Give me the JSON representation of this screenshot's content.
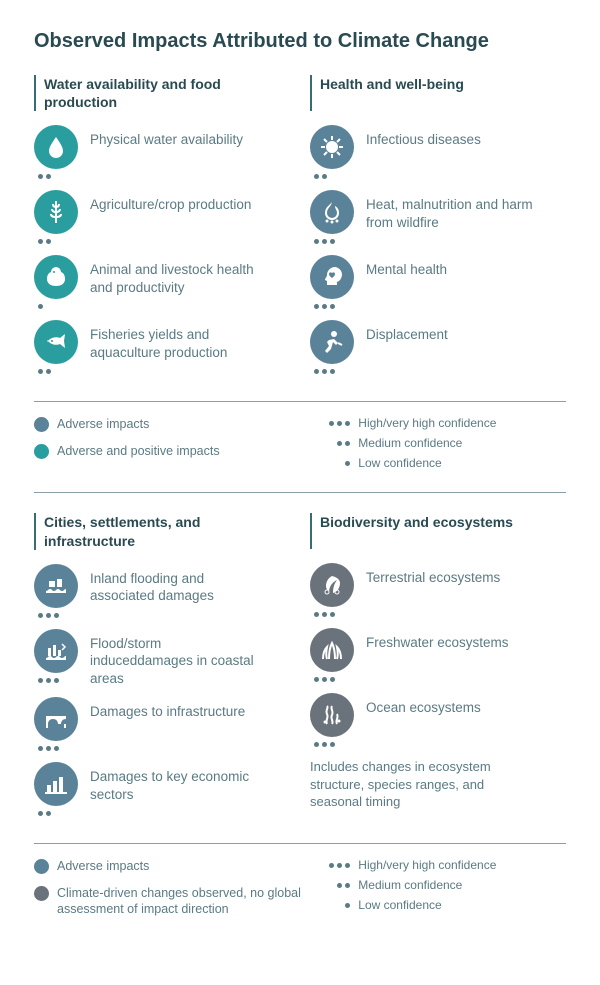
{
  "colors": {
    "teal": "#2a9d9e",
    "blue": "#5a8298",
    "gray": "#6a737b",
    "text": "#5a7a84",
    "heading": "#2a4a52"
  },
  "title": "Observed Impacts Attributed to Climate Change",
  "block1": {
    "left": {
      "header": "Water availability and food production",
      "items": [
        {
          "icon": "water-drop",
          "label": "Physical water availability",
          "color": "teal",
          "conf": 2
        },
        {
          "icon": "wheat",
          "label": "Agriculture/crop production",
          "color": "teal",
          "conf": 2
        },
        {
          "icon": "chicken",
          "label": "Animal and livestock health and productivity",
          "color": "teal",
          "conf": 1
        },
        {
          "icon": "fish",
          "label": "Fisheries yields and aquaculture production",
          "color": "teal",
          "conf": 2
        }
      ]
    },
    "right": {
      "header": "Health and well-being",
      "items": [
        {
          "icon": "virus",
          "label": "Infectious diseases",
          "color": "blue",
          "conf": 2
        },
        {
          "icon": "flame",
          "label": "Heat, malnutrition and harm from wildfire",
          "color": "blue",
          "conf": 3
        },
        {
          "icon": "head-heart",
          "label": "Mental health",
          "color": "blue",
          "conf": 3
        },
        {
          "icon": "person-run",
          "label": "Displacement",
          "color": "blue",
          "conf": 3
        }
      ]
    }
  },
  "legend1": {
    "left": [
      {
        "color": "blue",
        "label": "Adverse impacts"
      },
      {
        "color": "teal",
        "label": "Adverse and positive impacts"
      }
    ],
    "right": [
      {
        "dots": 3,
        "label": "High/very high confidence"
      },
      {
        "dots": 2,
        "label": "Medium confidence"
      },
      {
        "dots": 1,
        "label": "Low confidence"
      }
    ]
  },
  "block2": {
    "left": {
      "header": "Cities, settlements, and infrastructure",
      "items": [
        {
          "icon": "flood",
          "label": "Inland flooding and associated damages",
          "color": "blue",
          "conf": 3
        },
        {
          "icon": "coastal",
          "label": "Flood/storm induceddamages in coastal areas",
          "color": "blue",
          "conf": 3
        },
        {
          "icon": "bridge",
          "label": "Damages to infrastructure",
          "color": "blue",
          "conf": 3
        },
        {
          "icon": "chart",
          "label": "Damages to key economic sectors",
          "color": "blue",
          "conf": 2
        }
      ]
    },
    "right": {
      "header": "Biodiversity and ecosystems",
      "items": [
        {
          "icon": "leaf-gear",
          "label": "Terrestrial ecosystems",
          "color": "gray",
          "conf": 3
        },
        {
          "icon": "grass",
          "label": "Freshwater ecosystems",
          "color": "gray",
          "conf": 3
        },
        {
          "icon": "seaweed",
          "label": "Ocean ecosystems",
          "color": "gray",
          "conf": 3
        }
      ],
      "note": "Includes changes in ecosystem structure, species ranges, and seasonal timing"
    }
  },
  "legend2": {
    "left": [
      {
        "color": "blue",
        "label": "Adverse impacts"
      },
      {
        "color": "gray",
        "label": "Climate-driven changes observed, no global assessment of impact direction"
      }
    ],
    "right": [
      {
        "dots": 3,
        "label": "High/very high confidence"
      },
      {
        "dots": 2,
        "label": "Medium confidence"
      },
      {
        "dots": 1,
        "label": "Low confidence"
      }
    ]
  }
}
